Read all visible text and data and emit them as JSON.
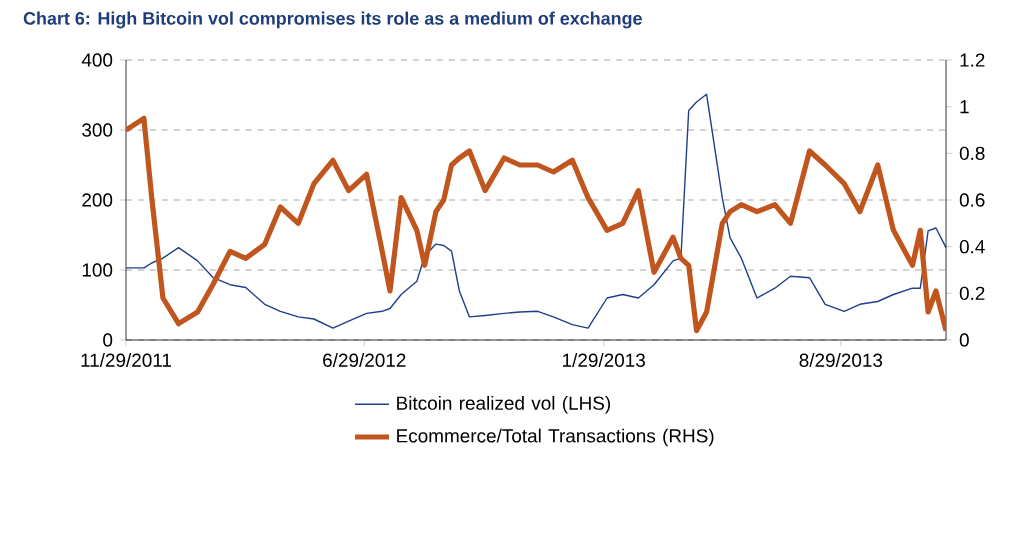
{
  "chart_data": {
    "type": "line",
    "title": "Chart 6: High Bitcoin vol compromises its role as a medium of exchange",
    "x": [
      "2011-11-29",
      "2011-12-15",
      "2011-12-22",
      "2012-01-01",
      "2012-01-15",
      "2012-02-01",
      "2012-02-15",
      "2012-03-01",
      "2012-03-15",
      "2012-04-01",
      "2012-04-15",
      "2012-05-01",
      "2012-05-15",
      "2012-06-01",
      "2012-06-15",
      "2012-07-01",
      "2012-07-15",
      "2012-07-22",
      "2012-08-01",
      "2012-08-15",
      "2012-08-22",
      "2012-09-01",
      "2012-09-08",
      "2012-09-15",
      "2012-09-22",
      "2012-10-01",
      "2012-10-15",
      "2012-11-01",
      "2012-11-15",
      "2012-12-01",
      "2012-12-15",
      "2013-01-01",
      "2013-01-15",
      "2013-02-01",
      "2013-02-15",
      "2013-03-01",
      "2013-03-15",
      "2013-04-01",
      "2013-04-08",
      "2013-04-15",
      "2013-04-22",
      "2013-05-01",
      "2013-05-15",
      "2013-05-22",
      "2013-06-01",
      "2013-06-15",
      "2013-07-01",
      "2013-07-15",
      "2013-08-01",
      "2013-08-15",
      "2013-09-01",
      "2013-09-15",
      "2013-10-01",
      "2013-10-15",
      "2013-11-01",
      "2013-11-08",
      "2013-11-15",
      "2013-11-22",
      "2013-12-01"
    ],
    "series": [
      {
        "name": "Bitcoin realized vol (LHS)",
        "color": "#1f3f8c",
        "values": [
          103,
          103,
          110,
          117,
          132,
          113,
          89,
          79,
          75,
          51,
          41,
          33,
          30,
          17,
          27,
          38,
          41,
          45,
          65,
          84,
          120,
          137,
          135,
          127,
          70,
          33,
          35,
          38,
          40,
          41,
          33,
          22,
          17,
          60,
          65,
          60,
          79,
          113,
          117,
          328,
          340,
          351,
          203,
          146,
          117,
          60,
          74,
          91,
          89,
          51,
          41,
          51,
          55,
          65,
          74,
          74,
          156,
          160,
          132
        ]
      },
      {
        "name": "Ecommerce/Total Transactions (RHS)",
        "color": "#c0561d",
        "axis": "y2",
        "values": [
          0.9,
          0.95,
          0.61,
          0.18,
          0.07,
          0.12,
          0.24,
          0.38,
          0.35,
          0.41,
          0.57,
          0.5,
          0.67,
          0.77,
          0.64,
          0.71,
          0.38,
          0.21,
          0.61,
          0.47,
          0.32,
          0.55,
          0.6,
          0.75,
          0.78,
          0.81,
          0.64,
          0.78,
          0.75,
          0.75,
          0.72,
          0.77,
          0.61,
          0.47,
          0.5,
          0.64,
          0.29,
          0.44,
          0.35,
          0.32,
          0.04,
          0.12,
          0.5,
          0.55,
          0.58,
          0.55,
          0.58,
          0.5,
          0.81,
          0.75,
          0.67,
          0.55,
          0.75,
          0.47,
          0.32,
          0.47,
          0.12,
          0.21,
          0.04
        ]
      }
    ],
    "xlim": [
      "2011-11-29",
      "2013-12-01"
    ],
    "xticks": [
      {
        "value": "2011-11-29",
        "label": "11/29/2011"
      },
      {
        "value": "2012-06-29",
        "label": "6/29/2012"
      },
      {
        "value": "2013-01-29",
        "label": "1/29/2013"
      },
      {
        "value": "2013-08-29",
        "label": "8/29/2013"
      }
    ],
    "ylim": [
      0,
      400
    ],
    "yticks": [
      0,
      100,
      200,
      300,
      400
    ],
    "y2lim": [
      0,
      1.2
    ],
    "y2ticks": [
      0,
      0.2,
      0.4,
      0.6,
      0.8,
      1,
      1.2
    ],
    "grid": "y",
    "legend": "bottom"
  }
}
